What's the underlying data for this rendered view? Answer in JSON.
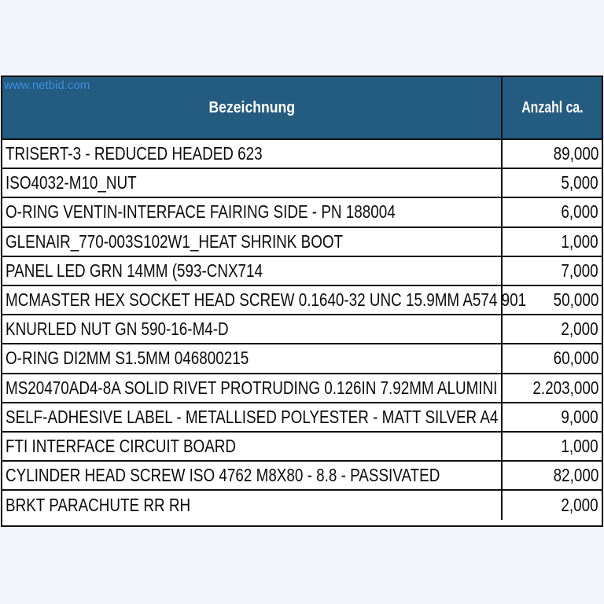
{
  "watermark": "www.netbid.com",
  "headers": {
    "name": "Bezeichnung",
    "qty": "Anzahl ca."
  },
  "rows": [
    {
      "name": "TRISERT-3 - REDUCED HEADED 623",
      "qty": "89,000"
    },
    {
      "name": "ISO4032-M10_NUT",
      "qty": "5,000"
    },
    {
      "name": "O-RING VENTIN-INTERFACE FAIRING SIDE - PN 188004",
      "qty": "6,000"
    },
    {
      "name": "GLENAIR_770-003S102W1_HEAT SHRINK BOOT",
      "qty": "1,000"
    },
    {
      "name": "PANEL LED GRN 14MM (593-CNX714",
      "qty": "7,000"
    },
    {
      "name": "MCMASTER HEX SOCKET HEAD SCREW 0.1640-32 UNC 15.9MM A574 901",
      "qty": "50,000"
    },
    {
      "name": "KNURLED NUT GN 590-16-M4-D",
      "qty": "2,000"
    },
    {
      "name": "O-RING DI2MM S1.5MM 046800215",
      "qty": "60,000"
    },
    {
      "name": "MS20470AD4-8A SOLID RIVET PROTRUDING  0.126IN 7.92MM ALUMINI",
      "qty": "2.203,000"
    },
    {
      "name": "SELF-ADHESIVE LABEL - METALLISED POLYESTER - MATT SILVER A4",
      "qty": "9,000"
    },
    {
      "name": "FTI INTERFACE CIRCUIT BOARD",
      "qty": "1,000"
    },
    {
      "name": "CYLINDER HEAD SCREW ISO 4762 M8X80 - 8.8 - PASSIVATED",
      "qty": "82,000"
    },
    {
      "name": "BRKT PARACHUTE RR RH",
      "qty": "2,000"
    }
  ]
}
